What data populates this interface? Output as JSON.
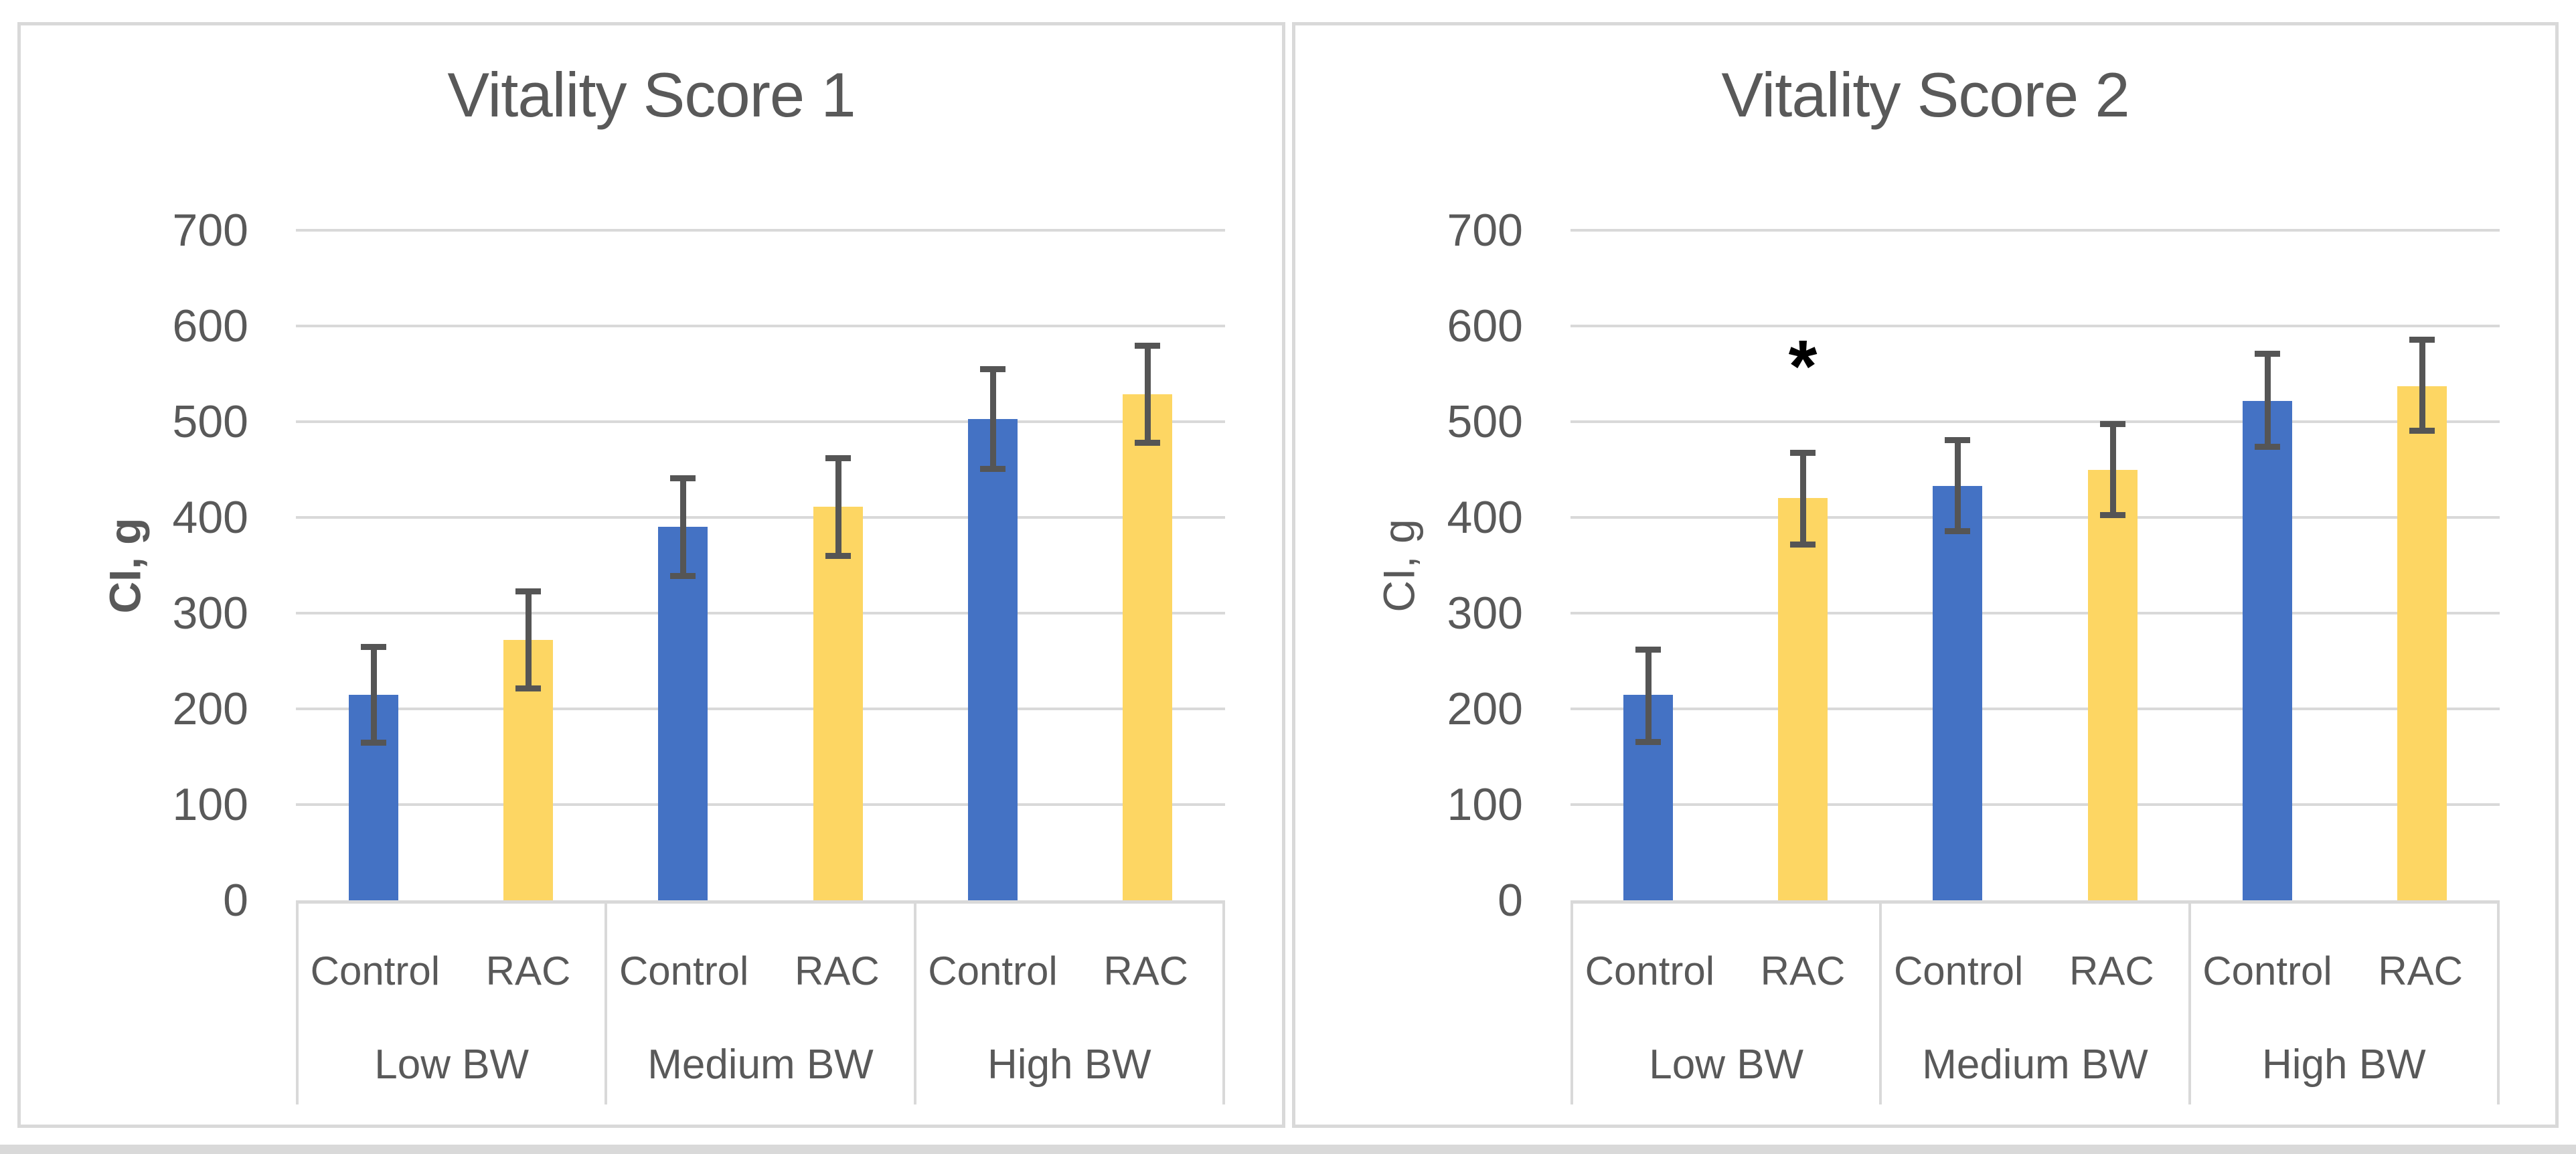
{
  "page": {
    "background": "#ffffff",
    "bottom_strip_color": "#d9d9d9"
  },
  "colors": {
    "control_bar": "#4472C4",
    "rac_bar": "#FDD663",
    "gridline": "#d9d9d9",
    "panel_border": "#d9d9d9",
    "error_bar": "#555555",
    "text": "#595959",
    "annotation": "#000000"
  },
  "chart_data": [
    {
      "type": "bar",
      "title": "Vitality Score 1",
      "ylabel": "CI, g",
      "ylabel_bold": true,
      "ylim": [
        0,
        700
      ],
      "yticks": [
        0,
        100,
        200,
        300,
        400,
        500,
        600,
        700
      ],
      "grid": true,
      "legend": "none",
      "group_labels": [
        "Low BW",
        "Medium BW",
        "High BW"
      ],
      "series_labels": [
        "Control",
        "RAC"
      ],
      "series": [
        {
          "name": "Control",
          "color": "#4472C4",
          "values": [
            215,
            390,
            503
          ],
          "err_low": [
            165,
            339,
            451
          ],
          "err_high": [
            265,
            441,
            555
          ]
        },
        {
          "name": "RAC",
          "color": "#FDD663",
          "values": [
            272,
            411,
            529
          ],
          "err_low": [
            222,
            360,
            478
          ],
          "err_high": [
            323,
            462,
            580
          ]
        }
      ],
      "annotations": []
    },
    {
      "type": "bar",
      "title": "Vitality Score 2",
      "ylabel": "CI, g",
      "ylabel_bold": false,
      "ylim": [
        0,
        700
      ],
      "yticks": [
        0,
        100,
        200,
        300,
        400,
        500,
        600,
        700
      ],
      "grid": true,
      "legend": "none",
      "group_labels": [
        "Low BW",
        "Medium BW",
        "High BW"
      ],
      "series_labels": [
        "Control",
        "RAC"
      ],
      "series": [
        {
          "name": "Control",
          "color": "#4472C4",
          "values": [
            215,
            433,
            522
          ],
          "err_low": [
            166,
            386,
            474
          ],
          "err_high": [
            262,
            481,
            571
          ]
        },
        {
          "name": "RAC",
          "color": "#FDD663",
          "values": [
            420,
            450,
            537
          ],
          "err_low": [
            372,
            403,
            491
          ],
          "err_high": [
            468,
            498,
            586
          ]
        }
      ],
      "annotations": [
        {
          "symbol": "*",
          "group_index": 0,
          "series_index": 1,
          "y": 577
        }
      ]
    }
  ]
}
